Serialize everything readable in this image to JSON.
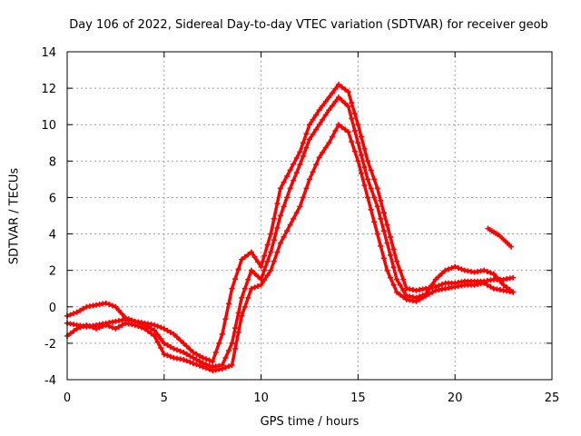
{
  "chart_data": {
    "type": "scatter",
    "title": "Day 106 of 2022, Sidereal Day-to-day VTEC variation (SDTVAR) for receiver geob",
    "xlabel": "GPS time / hours",
    "ylabel": "SDTVAR / TECUs",
    "xlim": [
      0,
      25
    ],
    "ylim": [
      -4,
      14
    ],
    "xticks": [
      "0",
      "5",
      "10",
      "15",
      "20",
      "25"
    ],
    "yticks": [
      "-4",
      "-2",
      "0",
      "2",
      "4",
      "6",
      "8",
      "10",
      "12",
      "14"
    ],
    "grid": true,
    "marker": "+",
    "color": "#ff0000",
    "series": [
      {
        "name": "trace-upper",
        "x": [
          0.0,
          0.5,
          1.0,
          1.5,
          2.0,
          2.5,
          3.0,
          3.5,
          4.0,
          4.5,
          5.0,
          5.5,
          6.0,
          6.5,
          7.0,
          7.5,
          8.0,
          8.5,
          9.0,
          9.5,
          10.0,
          10.5,
          11.0,
          11.5,
          12.0,
          12.5,
          13.0,
          13.5,
          14.0,
          14.5,
          15.0,
          15.5,
          16.0,
          16.5,
          17.0,
          17.5,
          18.0,
          18.5,
          19.0,
          19.5,
          20.0,
          20.5,
          21.0,
          21.5,
          22.0,
          22.5,
          23.0
        ],
        "y": [
          -0.5,
          -0.3,
          0.0,
          0.1,
          0.2,
          0.0,
          -0.6,
          -0.8,
          -0.9,
          -1.0,
          -1.2,
          -1.5,
          -2.0,
          -2.5,
          -2.8,
          -3.0,
          -1.5,
          1.0,
          2.6,
          3.0,
          2.2,
          4.0,
          6.5,
          7.5,
          8.5,
          10.0,
          10.8,
          11.5,
          12.2,
          11.8,
          10.0,
          8.0,
          6.5,
          4.5,
          2.5,
          1.0,
          0.9,
          1.0,
          1.1,
          1.3,
          1.3,
          1.4,
          1.4,
          1.4,
          1.5,
          1.5,
          1.6
        ]
      },
      {
        "name": "trace-middle",
        "x": [
          0.0,
          0.5,
          1.0,
          1.5,
          2.0,
          2.5,
          3.0,
          3.5,
          4.0,
          4.5,
          5.0,
          5.5,
          6.0,
          6.5,
          7.0,
          7.5,
          8.0,
          8.5,
          9.0,
          9.5,
          10.0,
          10.5,
          11.0,
          11.5,
          12.0,
          12.5,
          13.0,
          13.5,
          14.0,
          14.5,
          15.0,
          15.5,
          16.0,
          16.5,
          17.0,
          17.5,
          18.0,
          18.5,
          19.0,
          19.5,
          20.0,
          20.5,
          21.0,
          21.5,
          22.0,
          22.5,
          23.0
        ],
        "y": [
          -0.9,
          -1.0,
          -1.1,
          -1.0,
          -0.9,
          -0.8,
          -0.7,
          -0.8,
          -1.0,
          -1.3,
          -2.0,
          -2.3,
          -2.5,
          -2.8,
          -3.1,
          -3.3,
          -3.2,
          -2.0,
          0.5,
          2.0,
          1.5,
          3.0,
          5.0,
          6.5,
          7.8,
          9.2,
          10.0,
          10.8,
          11.5,
          11.0,
          9.0,
          7.0,
          5.5,
          3.5,
          1.5,
          0.6,
          0.5,
          0.7,
          1.5,
          2.0,
          2.2,
          2.0,
          1.9,
          2.0,
          1.8,
          1.2,
          0.8
        ]
      },
      {
        "name": "trace-lower",
        "x": [
          0.0,
          0.5,
          1.0,
          1.5,
          2.0,
          2.5,
          3.0,
          3.5,
          4.0,
          4.5,
          5.0,
          5.5,
          6.0,
          6.5,
          7.0,
          7.5,
          8.0,
          8.5,
          9.0,
          9.5,
          10.0,
          10.5,
          11.0,
          11.5,
          12.0,
          12.5,
          13.0,
          13.5,
          14.0,
          14.5,
          15.0,
          15.5,
          16.0,
          16.5,
          17.0,
          17.5,
          18.0,
          18.5,
          19.0,
          19.5,
          20.0,
          20.5,
          21.0,
          21.5,
          22.0,
          22.5,
          23.0
        ],
        "y": [
          -1.6,
          -1.2,
          -1.0,
          -1.2,
          -1.0,
          -1.2,
          -0.9,
          -1.0,
          -1.2,
          -1.6,
          -2.6,
          -2.8,
          -2.9,
          -3.1,
          -3.3,
          -3.5,
          -3.4,
          -3.2,
          -0.5,
          1.0,
          1.2,
          2.0,
          3.5,
          4.5,
          5.5,
          7.0,
          8.2,
          9.0,
          10.0,
          9.6,
          8.0,
          6.0,
          4.0,
          2.0,
          0.8,
          0.4,
          0.3,
          0.6,
          0.9,
          1.0,
          1.1,
          1.2,
          1.2,
          1.3,
          1.0,
          0.9,
          0.8
        ]
      },
      {
        "name": "trace-late",
        "x": [
          21.7,
          22.0,
          22.3,
          22.6,
          22.9
        ],
        "y": [
          4.3,
          4.1,
          3.9,
          3.6,
          3.3
        ]
      }
    ]
  }
}
